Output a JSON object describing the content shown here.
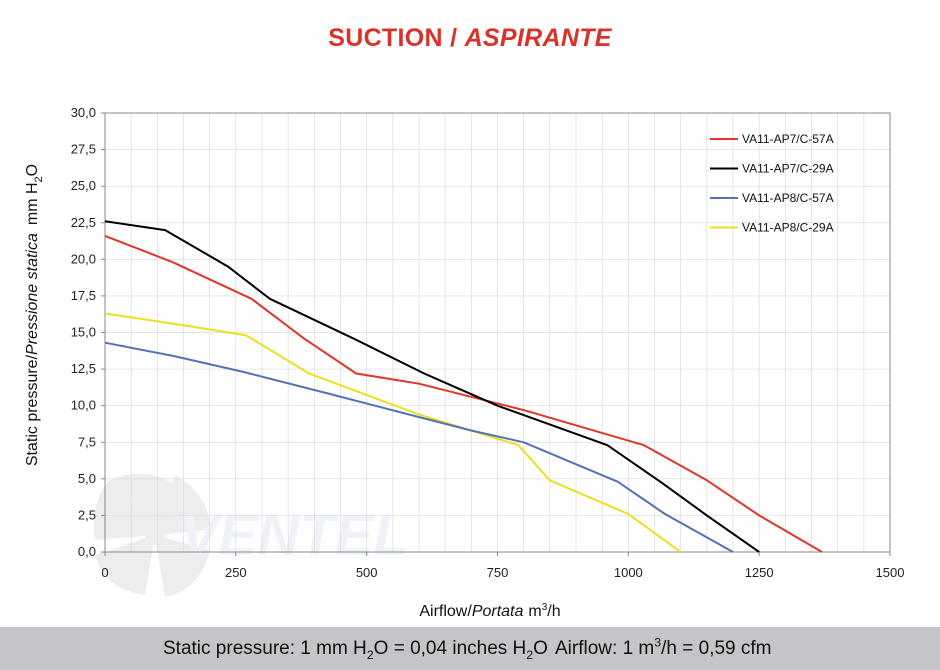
{
  "title": {
    "main": "SUCTION / ",
    "italic": "ASPIRANTE"
  },
  "watermark": {
    "text": "VENTEL"
  },
  "colors": {
    "title": "#d8322a",
    "red": "#e0352b",
    "black": "#000000",
    "blue": "#5570b8",
    "yellow": "#ecdf1e",
    "grid": "#dadada",
    "footer_bg": "#c3c5c9"
  },
  "footer": {
    "pressure_label": "Static pressure: 1 mm H",
    "pressure_sub": "2",
    "pressure_mid": "O = 0,04 inches H",
    "pressure_sub2": "2",
    "pressure_end": "O",
    "airflow_label": "Airflow: 1 m",
    "airflow_sup": "3",
    "airflow_end": "/h = 0,59 cfm"
  },
  "chart_data": {
    "type": "line",
    "title": "SUCTION / ASPIRANTE",
    "xlabel": "Airflow / Portata m³/h",
    "ylabel": "Static pressure / Pressione statica mm H₂O",
    "xlabel_parts": {
      "a": "Airflow",
      "slash": "/",
      "b": "Portata",
      "unit_pre": "m",
      "unit_sup": "3",
      "unit_post": "/h"
    },
    "ylabel_parts": {
      "a": "Static pressure",
      "slash": "/",
      "b": "Pressione statica",
      "unit_pre": "mm  H",
      "unit_sub": "2",
      "unit_post": "O"
    },
    "xlim": [
      0,
      1500
    ],
    "ylim": [
      0,
      30
    ],
    "x_ticks": [
      0,
      250,
      500,
      750,
      1000,
      1250,
      1500
    ],
    "x_tick_labels": [
      "0",
      "250",
      "500",
      "750",
      "1000",
      "1250",
      "1500"
    ],
    "y_ticks": [
      0,
      2.5,
      5,
      7.5,
      10,
      12.5,
      15,
      17.5,
      20,
      22.5,
      25,
      27.5,
      30
    ],
    "y_tick_labels": [
      "0,0",
      "2,5",
      "5,0",
      "7,5",
      "10,0",
      "12,5",
      "15,0",
      "17,5",
      "20,0",
      "22,5",
      "25,0",
      "27,5",
      "30,0"
    ],
    "grid": true,
    "legend_position": "top-right",
    "series": [
      {
        "name": "VA11-AP7/C-57A",
        "color": "#e0352b",
        "points": [
          [
            0,
            21.6
          ],
          [
            130,
            19.8
          ],
          [
            280,
            17.3
          ],
          [
            380,
            14.6
          ],
          [
            480,
            12.2
          ],
          [
            600,
            11.5
          ],
          [
            800,
            9.7
          ],
          [
            1030,
            7.3
          ],
          [
            1150,
            4.9
          ],
          [
            1250,
            2.5
          ],
          [
            1370,
            0
          ]
        ]
      },
      {
        "name": "VA11-AP7/C-29A",
        "color": "#000000",
        "points": [
          [
            0,
            22.6
          ],
          [
            115,
            22.0
          ],
          [
            235,
            19.5
          ],
          [
            315,
            17.3
          ],
          [
            480,
            14.5
          ],
          [
            610,
            12.2
          ],
          [
            750,
            10.0
          ],
          [
            960,
            7.3
          ],
          [
            1065,
            4.7
          ],
          [
            1150,
            2.5
          ],
          [
            1250,
            0
          ]
        ]
      },
      {
        "name": "VA11-AP8/C-57A",
        "color": "#5570b8",
        "points": [
          [
            0,
            14.3
          ],
          [
            130,
            13.4
          ],
          [
            265,
            12.3
          ],
          [
            430,
            10.8
          ],
          [
            580,
            9.4
          ],
          [
            700,
            8.3
          ],
          [
            800,
            7.5
          ],
          [
            980,
            4.8
          ],
          [
            1070,
            2.6
          ],
          [
            1200,
            0
          ]
        ]
      },
      {
        "name": "VA11-AP8/C-29A",
        "color": "#ecdf1e",
        "points": [
          [
            0,
            16.3
          ],
          [
            150,
            15.5
          ],
          [
            270,
            14.8
          ],
          [
            390,
            12.2
          ],
          [
            600,
            9.4
          ],
          [
            790,
            7.3
          ],
          [
            850,
            4.9
          ],
          [
            1000,
            2.6
          ],
          [
            1100,
            0
          ]
        ]
      }
    ]
  }
}
